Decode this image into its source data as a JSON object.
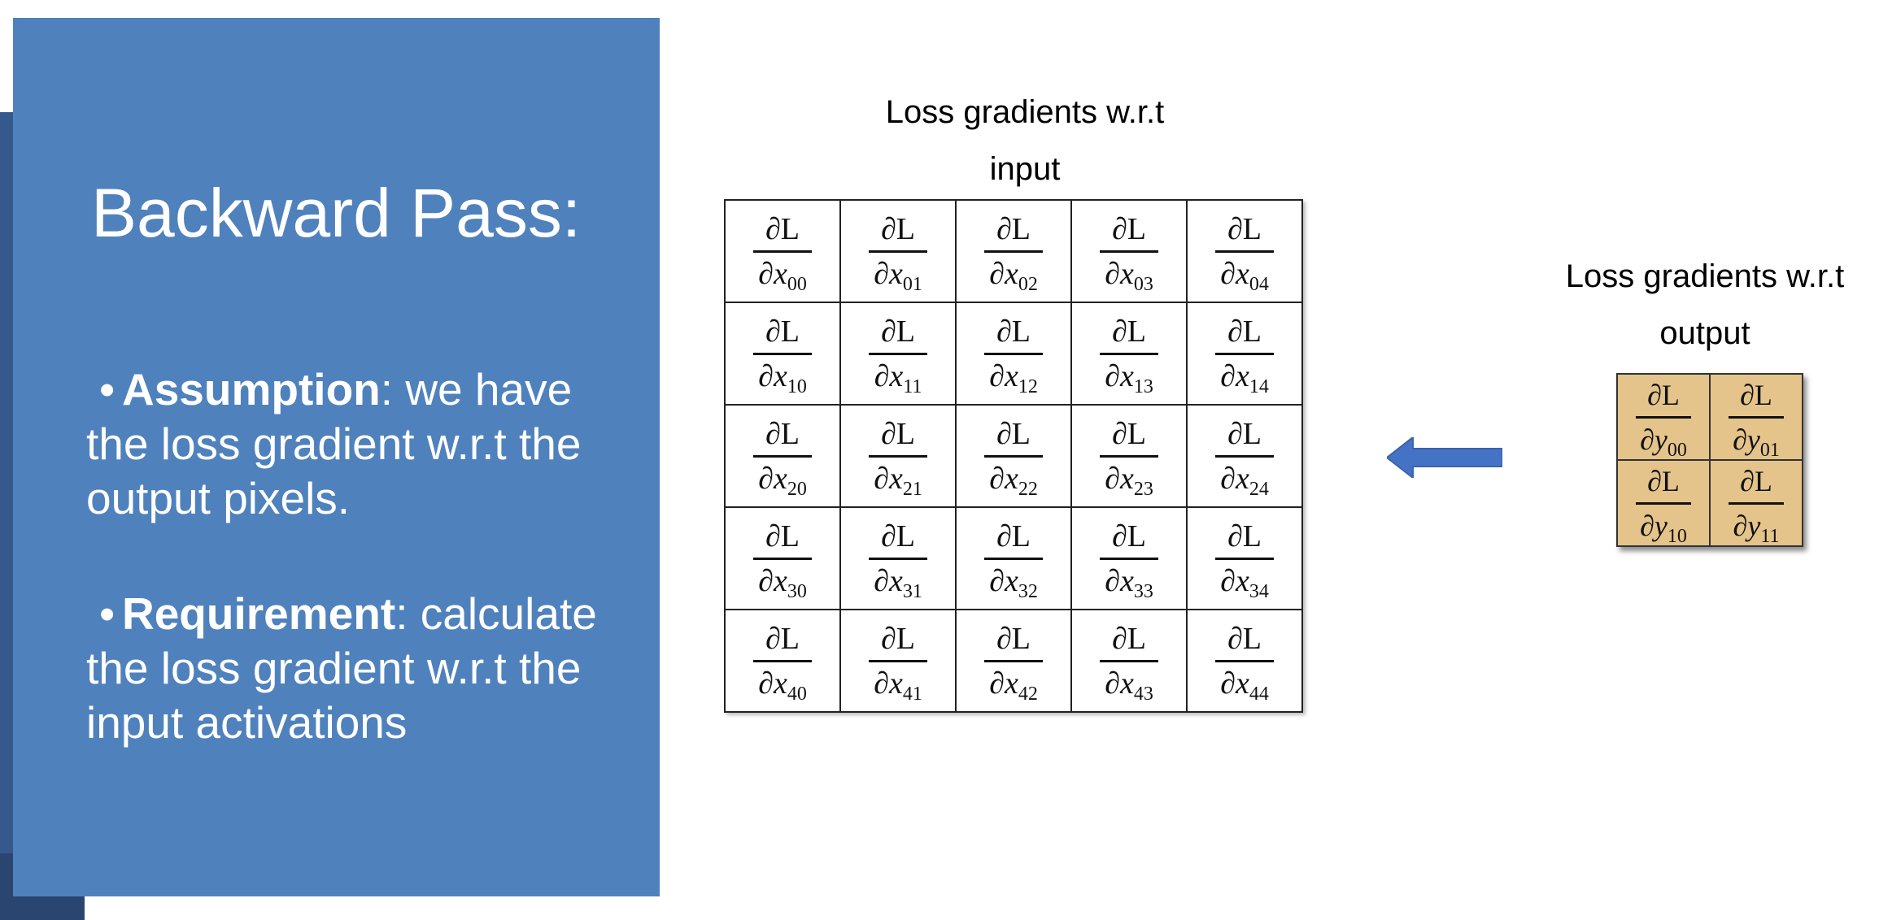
{
  "slide": {
    "title": "Backward Pass:",
    "bullets": [
      {
        "bullet": "•",
        "bold": "Assumption",
        "rest": ": we have the loss gradient w.r.t the output pixels."
      },
      {
        "bullet": "•",
        "bold": "Requirement",
        "rest": ": calculate the loss gradient w.r.t the input activations"
      }
    ]
  },
  "input_panel": {
    "caption_line1": "Loss gradients w.r.t",
    "caption_line2": "input",
    "numerator": "∂L",
    "den_prefix": "∂",
    "variable": "x",
    "indices": [
      [
        "00",
        "01",
        "02",
        "03",
        "04"
      ],
      [
        "10",
        "11",
        "12",
        "13",
        "14"
      ],
      [
        "20",
        "21",
        "22",
        "23",
        "24"
      ],
      [
        "30",
        "31",
        "32",
        "33",
        "34"
      ],
      [
        "40",
        "41",
        "42",
        "43",
        "44"
      ]
    ]
  },
  "output_panel": {
    "caption_line1": "Loss gradients w.r.t",
    "caption_line2": "output",
    "numerator": "∂L",
    "den_prefix": "∂",
    "variable": "y",
    "indices": [
      [
        "00",
        "01"
      ],
      [
        "10",
        "11"
      ]
    ]
  },
  "arrow": {
    "direction": "left",
    "color": "#4472c4"
  },
  "colors": {
    "panel": "#4f81bd",
    "panel_shadow": "#36598c",
    "output_cell": "#e4c48b",
    "text_on_panel": "#ffffff"
  }
}
